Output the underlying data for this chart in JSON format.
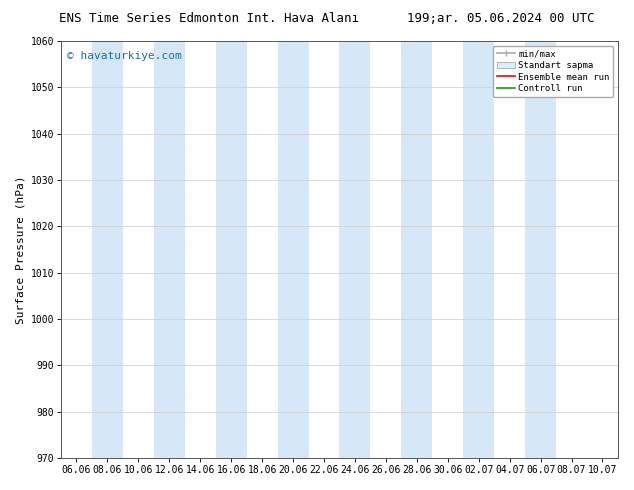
{
  "title_left": "ENS Time Series Edmonton Int. Hava Alanı",
  "title_right": "199;ar. 05.06.2024 00 UTC",
  "ylabel": "Surface Pressure (hPa)",
  "ylim": [
    970,
    1060
  ],
  "yticks": [
    970,
    980,
    990,
    1000,
    1010,
    1020,
    1030,
    1040,
    1050,
    1060
  ],
  "xtick_labels": [
    "06.06",
    "08.06",
    "10.06",
    "12.06",
    "14.06",
    "16.06",
    "18.06",
    "20.06",
    "22.06",
    "24.06",
    "26.06",
    "28.06",
    "30.06",
    "02.07",
    "04.07",
    "06.07",
    "08.07",
    "10.07"
  ],
  "band_color": "#d6e8f7",
  "band_alpha": 1.0,
  "background_color": "#ffffff",
  "watermark": "© havaturkiye.com",
  "watermark_color": "#1a6bbf",
  "legend_entries": [
    "min/max",
    "Standart sapma",
    "Ensemble mean run",
    "Controll run"
  ],
  "legend_colors": [
    "#aaaaaa",
    "#cccccc",
    "#ff0000",
    "#00aa00"
  ],
  "title_fontsize": 9,
  "tick_fontsize": 7,
  "ylabel_fontsize": 8,
  "watermark_fontsize": 8,
  "legend_fontsize": 6.5,
  "fig_width": 6.34,
  "fig_height": 4.9,
  "dpi": 100
}
